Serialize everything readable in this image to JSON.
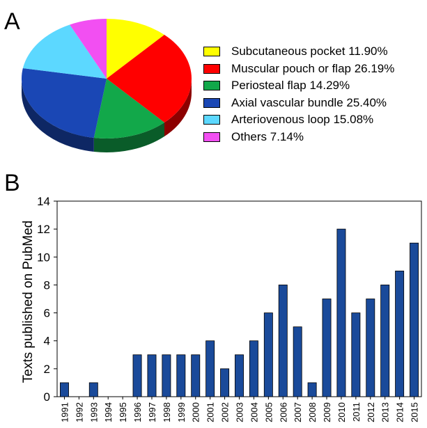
{
  "panels": {
    "a_label": "A",
    "b_label": "B"
  },
  "chart_data": [
    {
      "type": "pie",
      "style": "3d",
      "slices": [
        {
          "label": "Subcutaneous pocket",
          "value": 11.9,
          "text": "Subcutaneous pocket 11.90%",
          "color": "#ffff00"
        },
        {
          "label": "Muscular pouch or flap",
          "value": 26.19,
          "text": "Muscular pouch or flap 26.19%",
          "color": "#ff0000"
        },
        {
          "label": "Periosteal flap",
          "value": 14.29,
          "text": "Periosteal flap 14.29%",
          "color": "#12a84a"
        },
        {
          "label": "Axial vascular bundle",
          "value": 25.4,
          "text": "Axial vascular bundle 25.40%",
          "color": "#1a47b5"
        },
        {
          "label": "Arteriovenous loop",
          "value": 15.08,
          "text": "Arteriovenous loop 15.08%",
          "color": "#5cd8ff"
        },
        {
          "label": "Others",
          "value": 7.14,
          "text": "Others 7.14%",
          "color": "#f24ff2"
        }
      ],
      "legend_position": "right"
    },
    {
      "type": "bar",
      "categories": [
        "1991",
        "1992",
        "1993",
        "1994",
        "1995",
        "1996",
        "1997",
        "1998",
        "1999",
        "2000",
        "2001",
        "2002",
        "2003",
        "2004",
        "2005",
        "2006",
        "2007",
        "2008",
        "2009",
        "2010",
        "2011",
        "2012",
        "2013",
        "2014",
        "2015"
      ],
      "values": [
        1,
        0,
        1,
        0,
        0,
        3,
        3,
        3,
        3,
        3,
        4,
        2,
        3,
        4,
        6,
        8,
        5,
        1,
        7,
        12,
        6,
        7,
        8,
        9,
        11
      ],
      "ylabel": "Texts published on PubMed",
      "ylim": [
        0,
        14
      ],
      "yticks": [
        0,
        2,
        4,
        6,
        8,
        10,
        12,
        14
      ],
      "bar_color": "#1a4a9a",
      "grid": false
    }
  ]
}
